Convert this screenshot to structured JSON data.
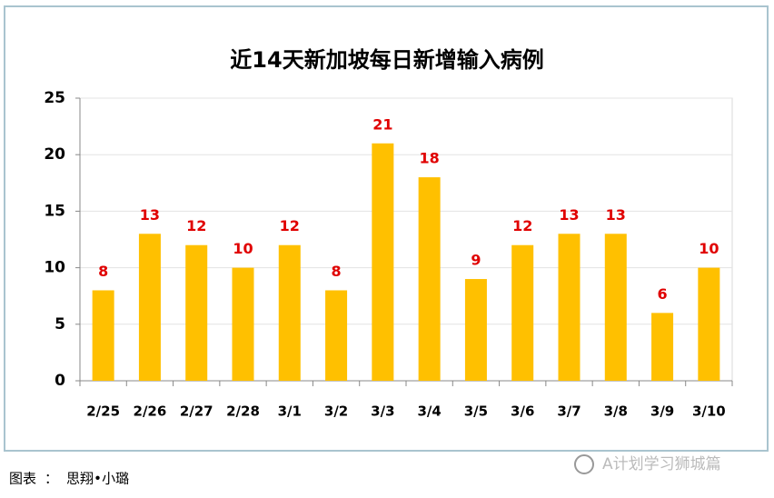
{
  "chart_data": {
    "type": "bar",
    "title": "近14天新加坡每日新增输入病例",
    "categories": [
      "2/25",
      "2/26",
      "2/27",
      "2/28",
      "3/1",
      "3/2",
      "3/3",
      "3/4",
      "3/5",
      "3/6",
      "3/7",
      "3/8",
      "3/9",
      "3/10"
    ],
    "values": [
      8,
      13,
      12,
      10,
      12,
      8,
      21,
      18,
      9,
      12,
      13,
      13,
      6,
      10
    ],
    "color": "#ffc000",
    "value_label_color": "#e00000",
    "ylim": [
      0,
      25
    ],
    "yticks": [
      0,
      5,
      10,
      15,
      20,
      25
    ],
    "grid": true
  },
  "footer": {
    "caption": "图表 ： 思翔•小璐",
    "watermark": "A计划学习狮城篇"
  }
}
